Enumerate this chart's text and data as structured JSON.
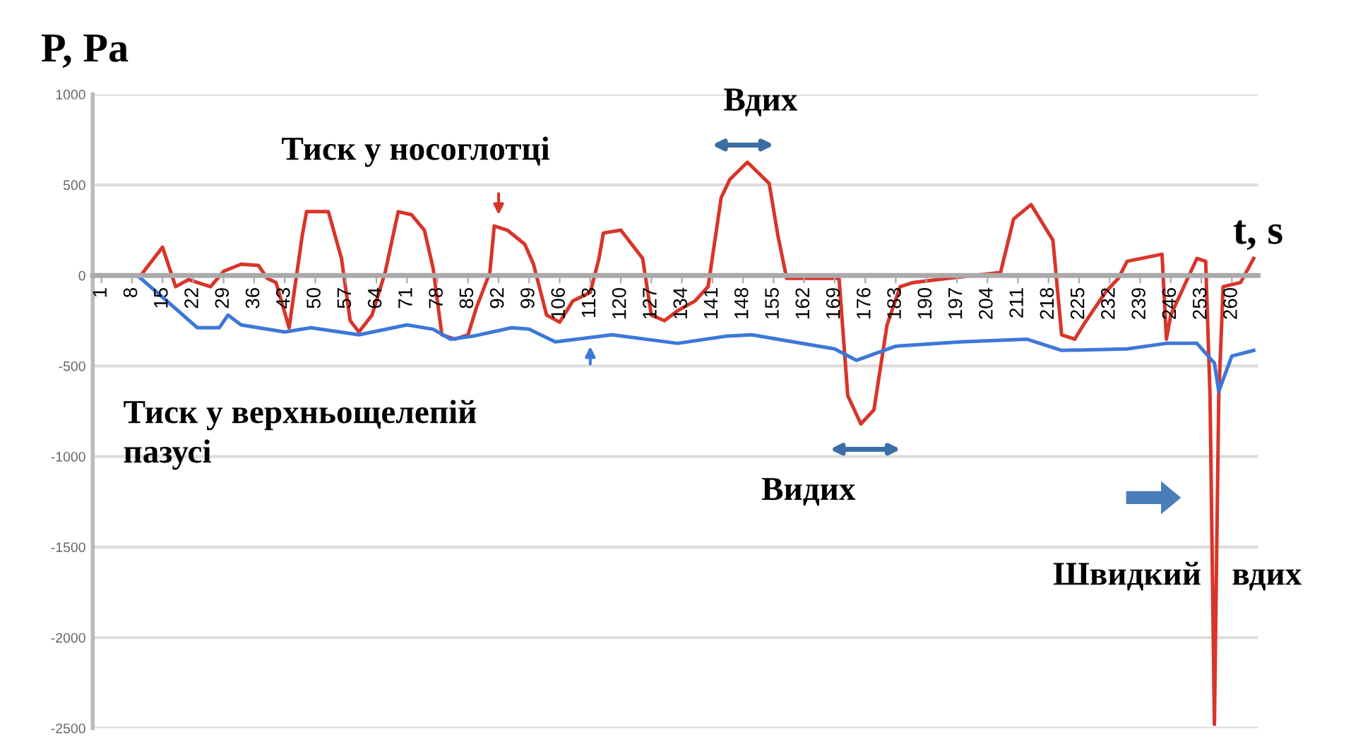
{
  "chart_data": {
    "type": "line",
    "xlabel": "t, s",
    "ylabel": "P, Pa",
    "xlim": [
      -1,
      266
    ],
    "ylim": [
      -2500,
      1000
    ],
    "xticks": [
      1,
      8,
      15,
      22,
      29,
      36,
      43,
      50,
      57,
      64,
      71,
      78,
      85,
      92,
      99,
      106,
      113,
      120,
      127,
      134,
      141,
      148,
      155,
      162,
      169,
      176,
      183,
      190,
      197,
      204,
      211,
      218,
      225,
      232,
      239,
      246,
      253,
      260
    ],
    "yticks": [
      -2500,
      -2000,
      -1500,
      -1000,
      -500,
      0,
      500,
      1000
    ],
    "grid": "y",
    "legend": false,
    "marker": "none",
    "line_style": "solid",
    "series": [
      {
        "color": "#d8352a",
        "x": [
          0,
          10,
          15,
          18,
          21,
          26,
          29,
          33,
          37,
          39,
          41,
          44,
          47,
          48,
          53,
          56,
          58,
          60,
          63,
          66,
          69,
          72,
          75,
          77,
          79,
          82,
          85,
          87,
          90,
          91,
          94,
          98,
          100,
          103,
          106,
          109,
          113,
          115,
          116,
          120,
          125,
          127,
          130,
          133,
          137,
          140,
          143,
          145,
          149,
          154,
          156,
          158,
          170,
          172,
          175,
          178,
          181,
          184,
          187,
          195,
          207,
          210,
          214,
          218,
          219,
          221,
          224,
          226,
          231,
          234,
          236,
          244,
          245,
          246,
          252,
          254,
          255,
          256,
          257,
          258,
          262,
          265
        ],
        "values": [
          0,
          0,
          156,
          -62,
          -23,
          -62,
          23,
          62,
          55,
          -16,
          -39,
          -289,
          219,
          352,
          352,
          94,
          -250,
          -312,
          -219,
          16,
          352,
          336,
          250,
          39,
          -328,
          -352,
          -328,
          -172,
          16,
          273,
          250,
          172,
          62,
          -219,
          -258,
          -141,
          -94,
          94,
          234,
          250,
          94,
          -219,
          -250,
          -195,
          -141,
          -62,
          430,
          531,
          625,
          508,
          219,
          -16,
          -16,
          -664,
          -820,
          -742,
          -273,
          -62,
          -39,
          -16,
          16,
          312,
          391,
          234,
          195,
          -328,
          -352,
          -273,
          -94,
          -16,
          78,
          117,
          -352,
          -219,
          94,
          78,
          -664,
          -2480,
          -664,
          -62,
          -39,
          94
        ]
      },
      {
        "color": "#3c78d8",
        "x": [
          0,
          9,
          10,
          16,
          23,
          28,
          30,
          33,
          43,
          49,
          60,
          71,
          77,
          81,
          86,
          95,
          99,
          105,
          118,
          133,
          144,
          150,
          169,
          174,
          183,
          198,
          213,
          221,
          236,
          245,
          252,
          256,
          257,
          260,
          265
        ],
        "values": [
          0,
          0,
          -16,
          -141,
          -289,
          -289,
          -219,
          -273,
          -312,
          -289,
          -328,
          -273,
          -297,
          -352,
          -336,
          -289,
          -297,
          -367,
          -328,
          -375,
          -336,
          -328,
          -406,
          -469,
          -391,
          -367,
          -352,
          -414,
          -406,
          -375,
          -375,
          -484,
          -640,
          -445,
          -414
        ]
      }
    ],
    "annotations": [
      {
        "text": "Тиск у носоглотці",
        "x": 92,
        "y": 273
      },
      "Тиск у верхньощелепій пазусі",
      {
        "text": "Вдих",
        "x": 149,
        "y": 625
      },
      {
        "text": "Видих",
        "x": 175,
        "y": -820
      },
      "Швидкий вдих"
    ]
  }
}
